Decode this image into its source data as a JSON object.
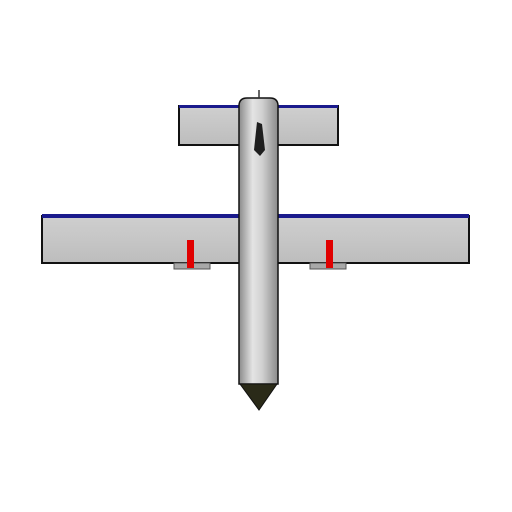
{
  "scene": {
    "subject": "aircraft-model",
    "view": "top-down",
    "colors": {
      "background": "#ffffff",
      "wing_fill": "#c4c4c4",
      "wing_outline": "#111111",
      "leading_edge_stripe": "#1a1a8c",
      "fuselage_light": "#e4e4e4",
      "fuselage_mid": "#b8b8b8",
      "fuselage_dark": "#8a8a8a",
      "nose_cone": "#2a2a18",
      "control_horn": "#e00000",
      "servo_mount": "#a8a8a8"
    }
  }
}
